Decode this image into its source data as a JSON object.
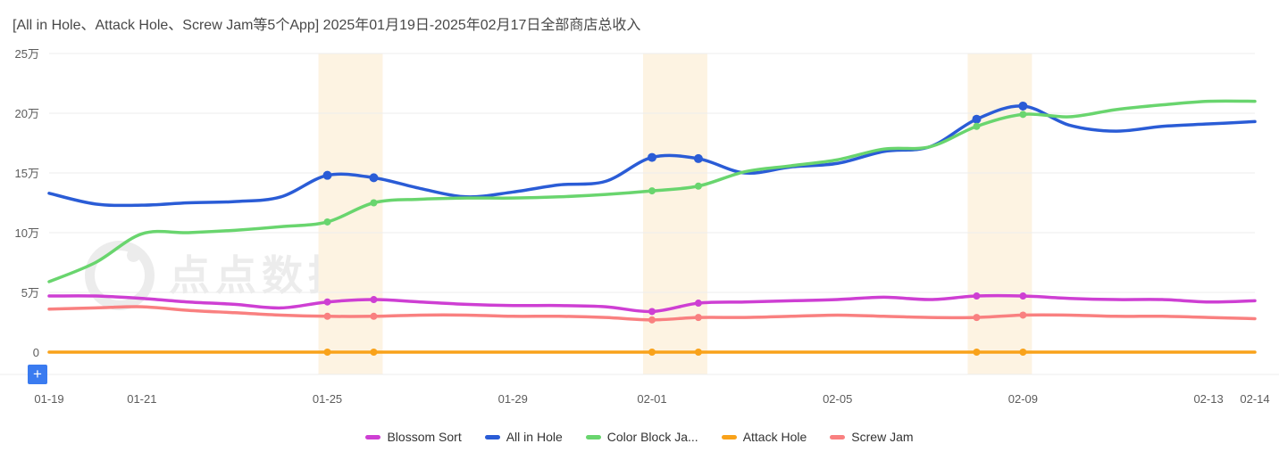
{
  "header": {
    "title": "[All in Hole、Attack Hole、Screw Jam等5个App] 2025年01月19日-2025年02月17日全部商店总收入"
  },
  "watermark": {
    "text": "点点数据"
  },
  "toolbar": {
    "plus_label": "+"
  },
  "colors": {
    "band": "#fdf3e2",
    "grid": "#ededed",
    "axis_text": "#5c5c5c",
    "title_text": "#484848"
  },
  "chart_data": {
    "type": "line",
    "title": "[All in Hole、Attack Hole、Screw Jam等5个App] 2025年01月19日-2025年02月17日全部商店总收入",
    "unit": "万",
    "ylabel": "",
    "xlabel": "",
    "ylim": [
      0,
      25
    ],
    "grid": true,
    "legend_position": "bottom",
    "x": [
      "01-19",
      "01-20",
      "01-21",
      "01-22",
      "01-23",
      "01-24",
      "01-25",
      "01-26",
      "01-27",
      "01-28",
      "01-29",
      "01-30",
      "01-31",
      "02-01",
      "02-02",
      "02-03",
      "02-04",
      "02-05",
      "02-06",
      "02-07",
      "02-08",
      "02-09",
      "02-10",
      "02-11",
      "02-12",
      "02-13",
      "02-14"
    ],
    "x_tick_labels": [
      {
        "index": 0,
        "label": "01-19"
      },
      {
        "index": 2,
        "label": "01-21"
      },
      {
        "index": 6,
        "label": "01-25"
      },
      {
        "index": 10,
        "label": "01-29"
      },
      {
        "index": 13,
        "label": "02-01"
      },
      {
        "index": 17,
        "label": "02-05"
      },
      {
        "index": 21,
        "label": "02-09"
      },
      {
        "index": 25,
        "label": "02-13"
      },
      {
        "index": 26,
        "label": "02-14"
      }
    ],
    "y_ticks": [
      {
        "value": 0,
        "label": "0"
      },
      {
        "value": 5,
        "label": "5万"
      },
      {
        "value": 10,
        "label": "10万"
      },
      {
        "value": 15,
        "label": "15万"
      },
      {
        "value": 20,
        "label": "20万"
      },
      {
        "value": 25,
        "label": "25万"
      }
    ],
    "highlight_bands": [
      [
        "01-25",
        "01-26"
      ],
      [
        "02-01",
        "02-02"
      ],
      [
        "02-08",
        "02-09"
      ]
    ],
    "band_color": "#fdf3e2",
    "marker_indices": [
      6,
      7,
      13,
      14,
      20,
      21
    ],
    "series": [
      {
        "name": "Blossom Sort",
        "color": "#ce3fd3",
        "values": [
          4.7,
          4.7,
          4.5,
          4.2,
          4.0,
          3.7,
          4.2,
          4.4,
          4.2,
          4.0,
          3.9,
          3.9,
          3.8,
          3.4,
          4.1,
          4.2,
          4.3,
          4.4,
          4.6,
          4.4,
          4.7,
          4.7,
          4.5,
          4.4,
          4.4,
          4.2,
          4.3
        ]
      },
      {
        "name": "All in Hole",
        "color": "#2a5cd6",
        "values": [
          13.3,
          12.4,
          12.3,
          12.5,
          12.6,
          13.0,
          14.8,
          14.6,
          13.7,
          13.0,
          13.4,
          14.0,
          14.3,
          16.3,
          16.2,
          15.0,
          15.5,
          15.8,
          16.8,
          17.2,
          19.5,
          20.6,
          19.0,
          18.5,
          18.9,
          19.1,
          19.3
        ]
      },
      {
        "name": "Color Block Ja...",
        "color": "#69d56e",
        "values": [
          5.9,
          7.5,
          9.9,
          10.0,
          10.2,
          10.5,
          10.9,
          12.5,
          12.8,
          12.9,
          12.9,
          13.0,
          13.2,
          13.5,
          13.9,
          15.1,
          15.6,
          16.1,
          17.0,
          17.2,
          18.9,
          19.9,
          19.7,
          20.3,
          20.7,
          21.0,
          21.0
        ]
      },
      {
        "name": "Attack Hole",
        "color": "#f9a21a",
        "values": [
          0,
          0,
          0,
          0,
          0,
          0,
          0,
          0,
          0,
          0,
          0,
          0,
          0,
          0,
          0,
          0,
          0,
          0,
          0,
          0,
          0,
          0,
          0,
          0,
          0,
          0,
          0
        ]
      },
      {
        "name": "Screw Jam",
        "color": "#f98080",
        "values": [
          3.6,
          3.7,
          3.8,
          3.5,
          3.3,
          3.1,
          3.0,
          3.0,
          3.1,
          3.1,
          3.0,
          3.0,
          2.9,
          2.7,
          2.9,
          2.9,
          3.0,
          3.1,
          3.0,
          2.9,
          2.9,
          3.1,
          3.1,
          3.0,
          3.0,
          2.9,
          2.8
        ]
      }
    ]
  }
}
